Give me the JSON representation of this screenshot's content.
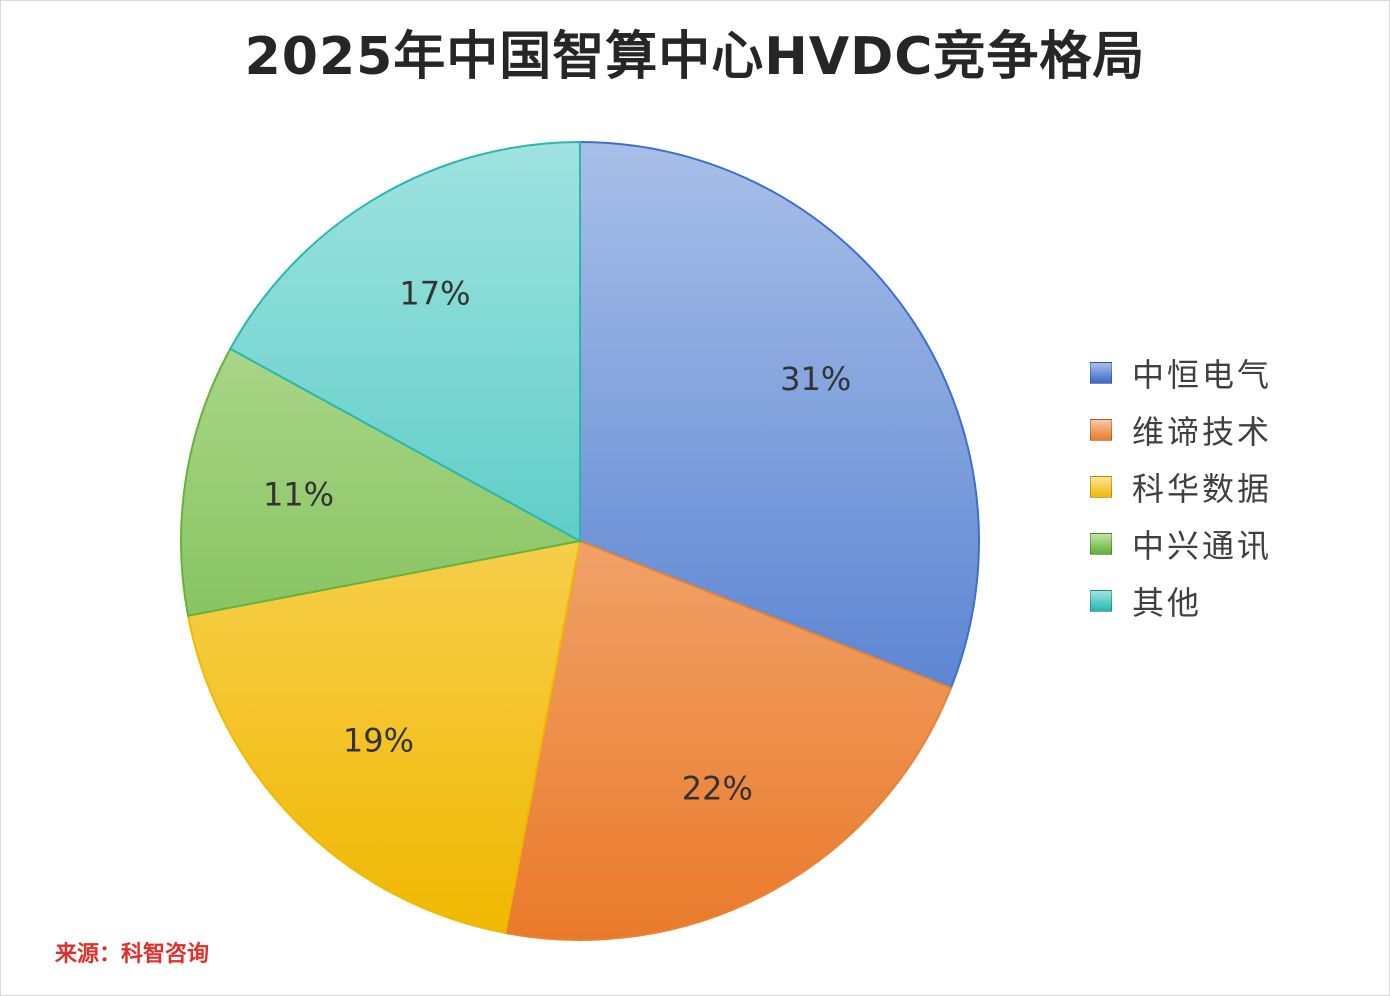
{
  "chart_data": {
    "type": "pie",
    "title": "2025年中国智算中心HVDC竞争格局",
    "categories": [
      "中恒电气",
      "维谛技术",
      "科华数据",
      "中兴通讯",
      "其他"
    ],
    "values": [
      31,
      22,
      19,
      11,
      17
    ],
    "labels": [
      "31%",
      "22%",
      "19%",
      "11%",
      "17%"
    ],
    "colors": [
      [
        "#a8bfe8",
        "#3a6bc8"
      ],
      [
        "#f7c9a6",
        "#ea7a2a"
      ],
      [
        "#fde497",
        "#f0b800"
      ],
      [
        "#c4e3a4",
        "#5faf36"
      ],
      [
        "#9fe3e0",
        "#22b8b0"
      ]
    ],
    "edge_colors": [
      "#3e6fcc",
      "#ea8236",
      "#f0b800",
      "#66b23c",
      "#2ab7b0"
    ],
    "legend_position": "right",
    "start": "top, clockwise"
  },
  "source": "来源：科智咨询"
}
